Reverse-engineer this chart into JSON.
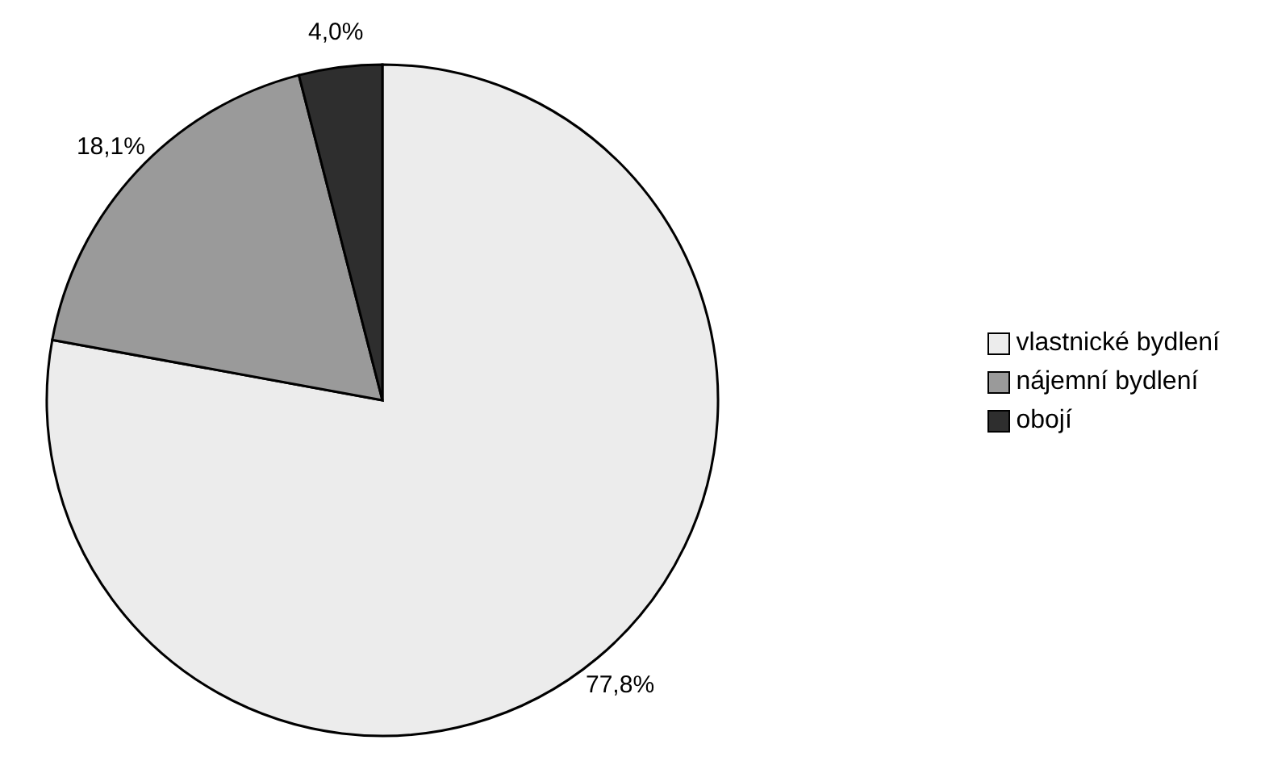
{
  "chart_data": {
    "type": "pie",
    "categories": [
      "vlastnické bydlení",
      "nájemní bydlení",
      "obojí"
    ],
    "values": [
      77.8,
      18.1,
      4.0
    ],
    "colors": [
      "#ececec",
      "#9a9a9a",
      "#2e2e2e"
    ],
    "value_labels": [
      "77,8%",
      "18,1%",
      "4,0%"
    ],
    "legend": "right"
  }
}
